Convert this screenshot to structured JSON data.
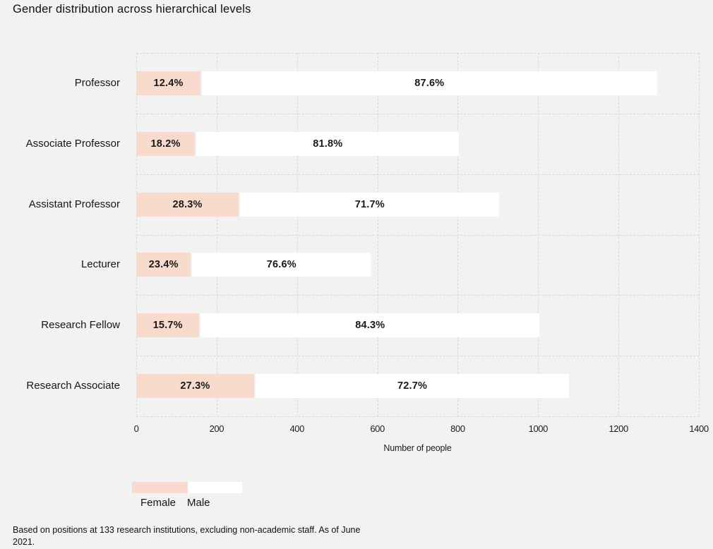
{
  "page": {
    "title": "Gender distribution across hierarchical levels",
    "footnote": "Based on positions at 133 research institutions, excluding non-academic staff. As of June 2021."
  },
  "colors": {
    "background": "#f2f2f2",
    "female": "#f8dbcc",
    "male": "#ffffff",
    "gridline": "#d8d8d8",
    "text": "#141414"
  },
  "legend": {
    "items": [
      {
        "label": "Female",
        "color": "#f8dbcc"
      },
      {
        "label": "Male",
        "color": "#ffffff"
      }
    ]
  },
  "chart_data": {
    "type": "bar",
    "orientation": "horizontal",
    "stacked": true,
    "title": "Gender distribution across hierarchical levels",
    "xlabel": "Number of people",
    "ylabel": "",
    "xlim": [
      0,
      1400
    ],
    "x_ticks": [
      0,
      200,
      400,
      600,
      800,
      1000,
      1200,
      1400
    ],
    "grid": "dashed",
    "legend_position": "bottom-left",
    "categories": [
      "Professor",
      "Associate Professor",
      "Assistant Professor",
      "Lecturer",
      "Research Fellow",
      "Research Associate"
    ],
    "totals": [
      1292,
      800,
      900,
      580,
      1000,
      1074
    ],
    "series": [
      {
        "name": "Female",
        "values": [
          160,
          146,
          255,
          136,
          157,
          293
        ],
        "labels": [
          "12.4%",
          "18.2%",
          "28.3%",
          "23.4%",
          "15.7%",
          "27.3%"
        ]
      },
      {
        "name": "Male",
        "values": [
          1132,
          654,
          645,
          444,
          843,
          781
        ],
        "labels": [
          "87.6%",
          "81.8%",
          "71.7%",
          "76.6%",
          "84.3%",
          "72.7%"
        ]
      }
    ]
  }
}
